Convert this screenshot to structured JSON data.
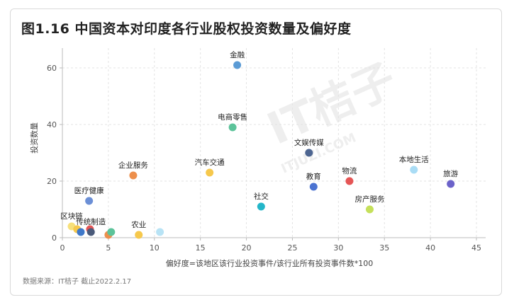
{
  "title": "图1.16 中国资本对印度各行业股权投资数量及偏好度",
  "source": "数据来源：IT桔子 截止2022.2.17",
  "watermark": {
    "main": "IT桔子",
    "sub": "ITJUZI.COM"
  },
  "chart_data": {
    "type": "scatter",
    "title": "图1.16 中国资本对印度各行业股权投资数量及偏好度",
    "xlabel": "偏好度=该地区该行业投资事件/该行业所有投资事件数*100",
    "ylabel": "投资数量",
    "xlim": [
      0,
      46
    ],
    "ylim": [
      0,
      67
    ],
    "xticks": [
      0,
      5,
      10,
      15,
      20,
      25,
      30,
      35,
      40,
      45
    ],
    "yticks": [
      0,
      20,
      40,
      60
    ],
    "grid": true,
    "points": [
      {
        "label": "金融",
        "x": 19.0,
        "y": 61,
        "color": "#5b9bd5"
      },
      {
        "label": "电商零售",
        "x": 18.5,
        "y": 39,
        "color": "#5cc39a"
      },
      {
        "label": "文娱传媒",
        "x": 26.8,
        "y": 30,
        "color": "#4e6691"
      },
      {
        "label": "企业服务",
        "x": 7.7,
        "y": 22,
        "color": "#ed8f4c"
      },
      {
        "label": "汽车交通",
        "x": 16.0,
        "y": 23,
        "color": "#f6c84c"
      },
      {
        "label": "本地生活",
        "x": 38.2,
        "y": 24,
        "color": "#a9dcf5"
      },
      {
        "label": "旅游",
        "x": 42.2,
        "y": 19,
        "color": "#6b62c9"
      },
      {
        "label": "教育",
        "x": 27.3,
        "y": 18,
        "color": "#4b73d1"
      },
      {
        "label": "物流",
        "x": 31.2,
        "y": 20,
        "color": "#e55555"
      },
      {
        "label": "医疗健康",
        "x": 2.9,
        "y": 13,
        "color": "#6b8fd6"
      },
      {
        "label": "社交",
        "x": 21.6,
        "y": 11,
        "color": "#24b6c9"
      },
      {
        "label": "房产服务",
        "x": 33.4,
        "y": 10,
        "color": "#c5e05a"
      },
      {
        "label": "区块链",
        "x": 1.0,
        "y": 4,
        "color": "#f7e07a"
      },
      {
        "label": "",
        "x": 1.6,
        "y": 3,
        "color": "#f6c84c"
      },
      {
        "label": "",
        "x": 2.0,
        "y": 2,
        "color": "#3f78c9"
      },
      {
        "label": "",
        "x": 3.0,
        "y": 3,
        "color": "#e55555"
      },
      {
        "label": "传统制造",
        "x": 3.1,
        "y": 2,
        "color": "#4a5a7a"
      },
      {
        "label": "",
        "x": 5.0,
        "y": 1,
        "color": "#ed8f4c"
      },
      {
        "label": "",
        "x": 5.3,
        "y": 2,
        "color": "#5cc39a"
      },
      {
        "label": "农业",
        "x": 8.3,
        "y": 1,
        "color": "#f6c84c"
      },
      {
        "label": "",
        "x": 10.6,
        "y": 2,
        "color": "#b8e3f5"
      }
    ]
  }
}
